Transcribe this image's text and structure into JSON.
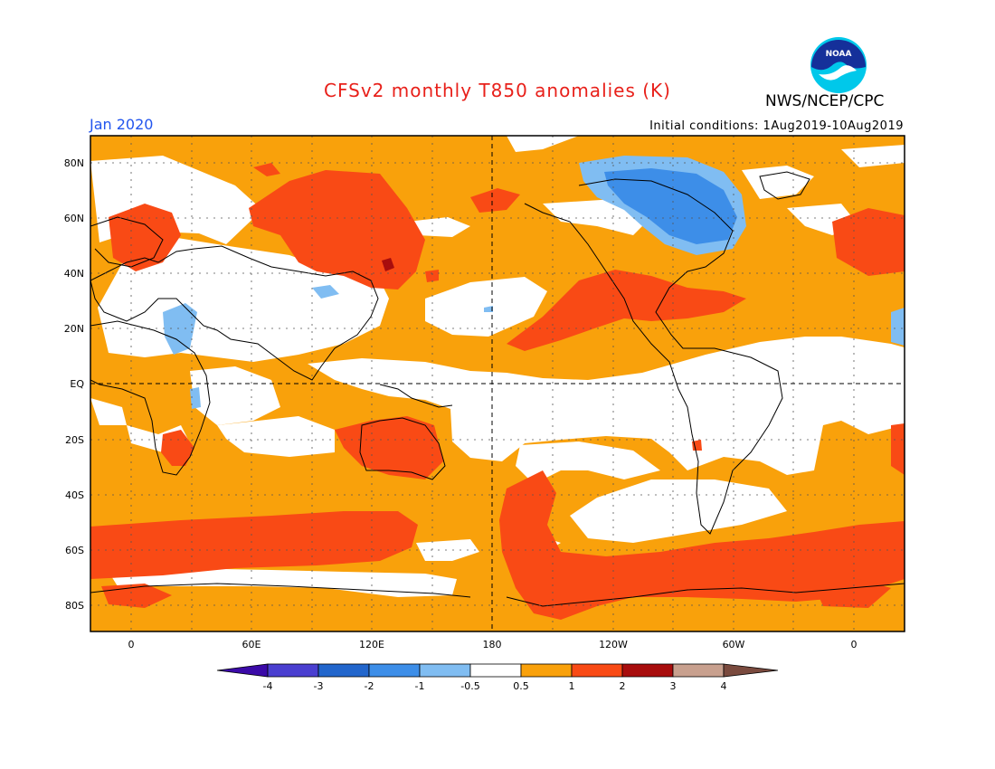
{
  "title": "CFSv2 monthly T850 anomalies (K)",
  "agency": "NWS/NCEP/CPC",
  "logo_text": "NOAA",
  "valid_month": "Jan 2020",
  "initial_conditions": "Initial conditions: 1Aug2019-10Aug2019",
  "map": {
    "lat_labels": [
      "80N",
      "60N",
      "40N",
      "20N",
      "EQ",
      "20S",
      "40S",
      "60S",
      "80S"
    ],
    "lon_labels": [
      "0",
      "60E",
      "120E",
      "180",
      "120W",
      "60W",
      "0"
    ]
  },
  "colorbar": {
    "labels": [
      "-4",
      "-3",
      "-2",
      "-1",
      "-0.5",
      "0.5",
      "1",
      "2",
      "3",
      "4"
    ],
    "colors": [
      "#3b0aa8",
      "#4a3fd0",
      "#2266cc",
      "#3d8ee8",
      "#80bdf2",
      "#ffffff",
      "#f9a10b",
      "#f94a15",
      "#a80d0d",
      "#c8a08e",
      "#7a4a3e"
    ]
  }
}
